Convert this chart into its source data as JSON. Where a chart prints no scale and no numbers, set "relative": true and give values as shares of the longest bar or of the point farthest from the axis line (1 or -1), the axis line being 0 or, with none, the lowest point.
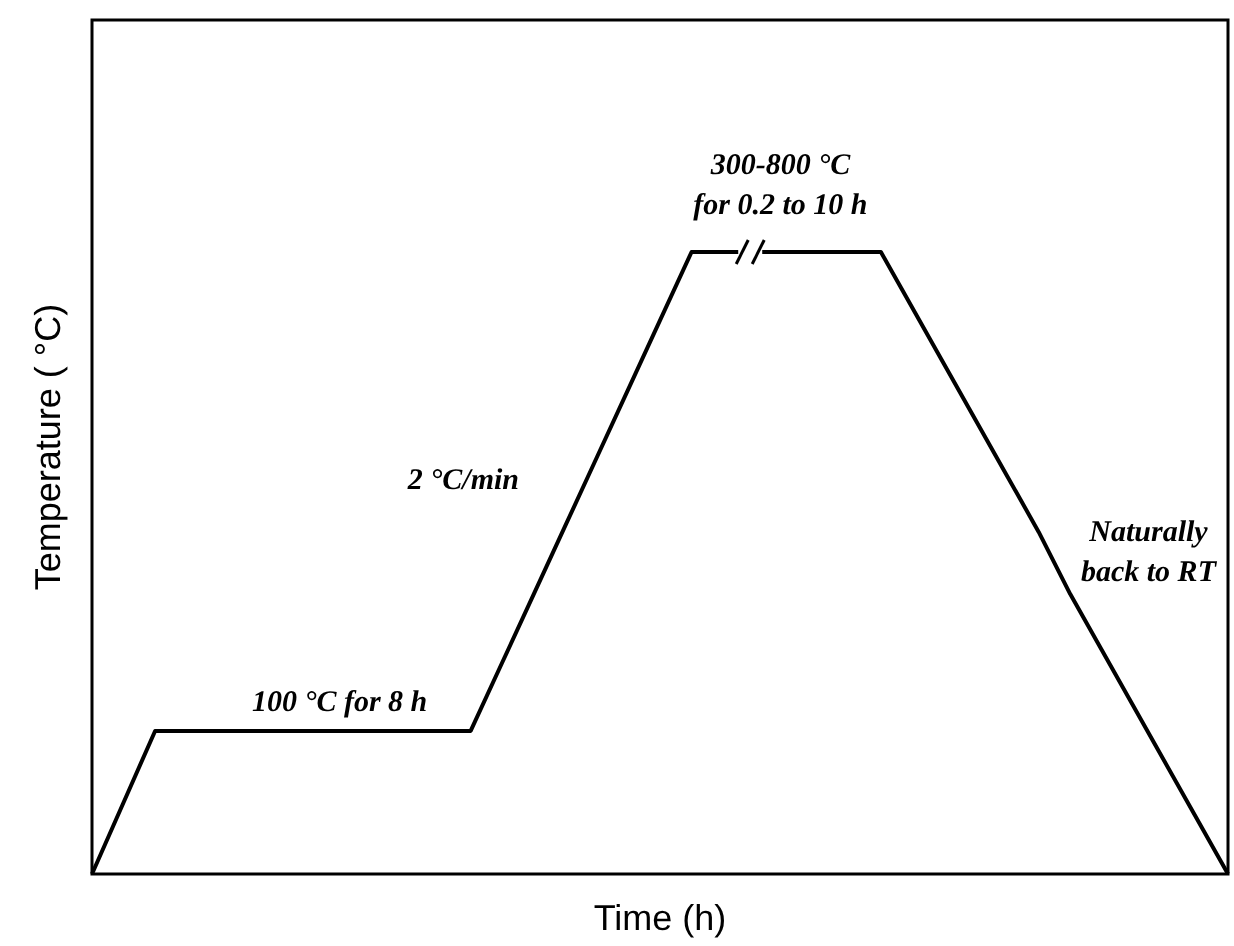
{
  "chart_data": {
    "type": "line",
    "relative": true,
    "xlabel": "Time (h)",
    "ylabel": "Temperature ( °C)",
    "categories": [
      null,
      null,
      null,
      null,
      null,
      null,
      null,
      null,
      null,
      null,
      null,
      null,
      null,
      null,
      null,
      null,
      null,
      null,
      null,
      null,
      null,
      null,
      null,
      null,
      null,
      null,
      null,
      null,
      null,
      null,
      null,
      null,
      null,
      null,
      null,
      null,
      null
    ],
    "series": [
      {
        "color": "#000000",
        "values": [
          0,
          0.115,
          0.23,
          0.23,
          0.23,
          0.23,
          0.23,
          0.23,
          0.23,
          0.23,
          0.23,
          0.23,
          0.23,
          0.34,
          0.45,
          0.56,
          0.67,
          0.78,
          0.89,
          1,
          1,
          1,
          1,
          1,
          1,
          1,
          0.91,
          0.82,
          0.73,
          0.64,
          0.55,
          0.45,
          0.36,
          0.27,
          0.18,
          0.09,
          0
        ]
      }
    ],
    "marker": "none",
    "line_style": "solid",
    "annotations": [
      "300-800 °C\nfor 0.2 to 10 h",
      "2 °C/min",
      "Naturally\nback to RT",
      "100 °C for 8 h"
    ]
  }
}
